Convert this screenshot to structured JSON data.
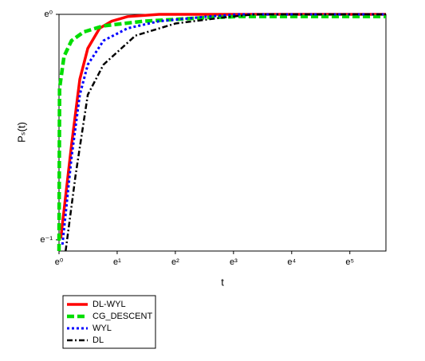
{
  "chart_data": {
    "type": "line",
    "x_label": "t",
    "y_label": "Pₛ(t)",
    "xscale": "log",
    "yscale": "log",
    "xlim": [
      1,
      276
    ],
    "ylim": [
      0.35,
      1
    ],
    "xticks": [
      {
        "value": 1,
        "label": "e⁰"
      },
      {
        "value": 2.71828,
        "label": "e¹"
      },
      {
        "value": 7.38906,
        "label": "e²"
      },
      {
        "value": 20.0855,
        "label": "e³"
      },
      {
        "value": 54.5982,
        "label": "e⁴"
      },
      {
        "value": 148.413,
        "label": "e⁵"
      }
    ],
    "yticks": [
      {
        "value": 0.367879,
        "label": "e⁻¹"
      },
      {
        "value": 1,
        "label": "e⁰"
      }
    ],
    "legend": "below",
    "series": [
      {
        "name": "DL-WYL",
        "color": "#ff0000",
        "style": "solid",
        "x": [
          1.03,
          1.24,
          1.43,
          1.64,
          2.01,
          2.47,
          3.25,
          5.6,
          276
        ],
        "values": [
          0.37,
          0.56,
          0.75,
          0.86,
          0.94,
          0.97,
          0.99,
          1,
          1
        ]
      },
      {
        "name": "CG_DESCENT",
        "color": "#00dd00",
        "style": "dashed",
        "x": [
          1,
          1.01,
          1.09,
          1.24,
          1.53,
          2.15,
          4.27,
          12.8,
          22,
          276
        ],
        "values": [
          0.35,
          0.72,
          0.83,
          0.89,
          0.925,
          0.95,
          0.97,
          0.986,
          0.99,
          0.99
        ]
      },
      {
        "name": "WYL",
        "color": "#0000ff",
        "style": "dotted",
        "x": [
          1.06,
          1.24,
          1.43,
          1.64,
          2.15,
          3.25,
          5.6,
          12.8,
          22,
          276
        ],
        "values": [
          0.36,
          0.53,
          0.7,
          0.8,
          0.89,
          0.94,
          0.97,
          0.99,
          1,
          1
        ]
      },
      {
        "name": "DL",
        "color": "#000000",
        "style": "dashdot",
        "x": [
          1.12,
          1.33,
          1.64,
          2.15,
          3.72,
          7.4,
          16.8,
          29,
          276
        ],
        "values": [
          0.35,
          0.49,
          0.7,
          0.8,
          0.91,
          0.96,
          0.986,
          1,
          1
        ]
      }
    ]
  }
}
